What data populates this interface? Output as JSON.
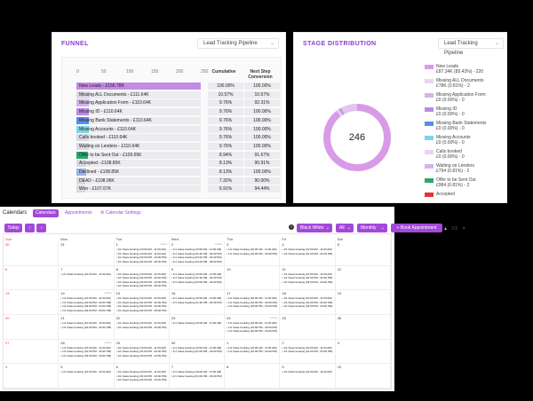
{
  "funnel": {
    "title": "FUNNEL",
    "pipeline_select": "Lead Tracking Pipeline",
    "axis_ticks": [
      "0",
      "50",
      "100",
      "150",
      "200",
      "250"
    ],
    "col_cumulative": "Cumulative",
    "col_next_step": "Next Step Conversion",
    "rows": [
      {
        "label": "New Leads - £156.78K",
        "fill": 1.0,
        "color": "#c48be6",
        "cumulative": "100.00%",
        "next": "100.00%"
      },
      {
        "label": "Missing ALL Documents - £111.64K",
        "fill": 0.1057,
        "color": "#d9d9e1",
        "cumulative": "10.57%",
        "next": "10.57%"
      },
      {
        "label": "Missing Application Form - £110.64K",
        "fill": 0.0976,
        "color": "#d3b3ec",
        "cumulative": "9.76%",
        "next": "92.31%"
      },
      {
        "label": "Missing ID - £110.64K",
        "fill": 0.0976,
        "color": "#b98be8",
        "cumulative": "9.76%",
        "next": "100.00%"
      },
      {
        "label": "Missing Bank Statements - £110.64K",
        "fill": 0.0976,
        "color": "#5a8de8",
        "cumulative": "9.76%",
        "next": "100.00%"
      },
      {
        "label": "Missing Accounts - £110.64K",
        "fill": 0.0976,
        "color": "#7cd6e8",
        "cumulative": "9.76%",
        "next": "100.00%"
      },
      {
        "label": "Calls booked - £110.64K",
        "fill": 0.0976,
        "color": "#d9d9e1",
        "cumulative": "9.76%",
        "next": "100.00%"
      },
      {
        "label": "Waiting on Lenders - £110.64K",
        "fill": 0.0976,
        "color": "#d9d9e1",
        "cumulative": "9.76%",
        "next": "100.00%"
      },
      {
        "label": "Offer to be Sent Out - £109.65K",
        "fill": 0.0894,
        "color": "#2aa86a",
        "cumulative": "8.94%",
        "next": "91.67%"
      },
      {
        "label": "Accepted - £108.85K",
        "fill": 0.0813,
        "color": "#d9d9e1",
        "cumulative": "8.13%",
        "next": "90.91%"
      },
      {
        "label": "Declined - £108.85K",
        "fill": 0.0813,
        "color": "#9bb2e8",
        "cumulative": "8.13%",
        "next": "100.00%"
      },
      {
        "label": "DEAD - £108.06K",
        "fill": 0.0732,
        "color": "#d9d9e1",
        "cumulative": "7.32%",
        "next": "90.00%"
      },
      {
        "label": "Won - £107.67K",
        "fill": 0.0691,
        "color": "#d9d9e1",
        "cumulative": "6.91%",
        "next": "94.44%"
      }
    ]
  },
  "stage": {
    "title": "STAGE DISTRIBUTION",
    "pipeline_select": "Lead Tracking Pipeline",
    "total": "246",
    "legend": [
      {
        "line1": "New Leads",
        "line2": "£87.34K (89.43%) - 220",
        "color": "#d99be8"
      },
      {
        "line1": "Missing ALL Documents",
        "line2": "£78K (0.81%) - 2",
        "color": "#e9d4f3"
      },
      {
        "line1": "Missing Application Form",
        "line2": "£0 (0.00%) - 0",
        "color": "#d3b3ec"
      },
      {
        "line1": "Missing ID",
        "line2": "£0 (0.00%) - 0",
        "color": "#b98be8"
      },
      {
        "line1": "Missing Bank Statements",
        "line2": "£0 (0.00%) - 0",
        "color": "#5a8de8"
      },
      {
        "line1": "Missing Accounts",
        "line2": "£0 (0.00%) - 0",
        "color": "#7cd6e8"
      },
      {
        "line1": "Calls booked",
        "line2": "£0 (0.00%) - 0",
        "color": "#e9d4f3"
      },
      {
        "line1": "Waiting on Lenders",
        "line2": "£794 (0.81%) - 2",
        "color": "#d3b3ec"
      },
      {
        "line1": "Offer to be Sent Out",
        "line2": "£984 (0.81%) - 2",
        "color": "#2aa86a"
      },
      {
        "line1": "Accepted",
        "line2": "",
        "color": "#e53333"
      }
    ],
    "pager": "1/2",
    "segments": [
      {
        "value": 89.43,
        "color": "#d99be8"
      },
      {
        "value": 0.81,
        "color": "#e9d4f3"
      },
      {
        "value": 0.81,
        "color": "#d3b3ec"
      },
      {
        "value": 0.81,
        "color": "#b98be8"
      },
      {
        "value": 8.14,
        "color": "#e2c4f1"
      }
    ]
  },
  "calendar": {
    "title": "Calendars",
    "tabs": [
      "Calendars",
      "Appointments",
      "Calendar Settings"
    ],
    "today_label": "Today",
    "prev_label": "‹",
    "next_label": "›",
    "filter_select": "Black White",
    "all_select": "All",
    "view_select": "Monthly",
    "new_appointment_label": "+ Book Appointment",
    "days_of_week": [
      "Sun",
      "Mon",
      "Tue",
      "Wed",
      "Thu",
      "Fri",
      "Sat"
    ],
    "more_label": "+more",
    "weeks": [
      [
        {
          "num": "30",
          "events": []
        },
        {
          "num": "31",
          "events": []
        },
        {
          "num": "1",
          "events": [
            "1/1 Class booking (10:00 AM - 11:00 AM)",
            "1/1 Class booking (10:00 AM - 11:00 AM)",
            "1/1 Class booking (03:00 PM - 04:00 PM)",
            "1/1 Class booking (04:00 PM - 05:00 PM)"
          ],
          "more": true
        },
        {
          "num": "2",
          "events": [
            "1/1 Class booking (10:00 AM - 11:00 AM)",
            "1/1 Class booking (01:30 PM - 02:30 PM)",
            "1/1 Class booking (03:00 PM - 04:00 PM)",
            "1/1 Class booking (04:00 PM - 05:00 PM)"
          ],
          "more": true
        },
        {
          "num": "3",
          "events": [
            "1/1 Class booking (10:00 AM - 11:00 AM)",
            "1/1 Class booking (01:00 PM - 02:00 PM)"
          ]
        },
        {
          "num": "4",
          "events": [
            "1/1 Class booking (10:00 AM - 11:00 AM)",
            "1/1 Class booking (01:00 PM - 02:00 PM)"
          ]
        },
        {
          "num": "5",
          "events": []
        }
      ],
      [
        {
          "num": "6",
          "events": []
        },
        {
          "num": "7",
          "events": [
            "1/1 Class booking (10:30 AM - 11:30 AM)"
          ]
        },
        {
          "num": "8",
          "events": [
            "1/1 Class booking (10:00 AM - 11:00 AM)",
            "1/1 Class booking (01:00 PM - 02:00 PM)",
            "1/1 Class booking (03:00 PM - 04:00 PM)",
            "1/1 Class booking (04:00 PM - 05:00 PM)"
          ]
        },
        {
          "num": "9",
          "events": [
            "1/1 Class booking (10:00 AM - 11:00 AM)",
            "1/1 Class booking (01:30 PM - 02:30 PM)",
            "1/1 Class booking (03:00 PM - 04:00 PM)"
          ]
        },
        {
          "num": "10",
          "events": []
        },
        {
          "num": "11",
          "events": [
            "1/1 Class booking (10:00 AM - 11:00 AM)",
            "1/1 Class booking (01:00 PM - 02:00 PM)",
            "1/1 Class booking (03:00 PM - 04:00 PM)"
          ]
        },
        {
          "num": "12",
          "events": []
        }
      ],
      [
        {
          "num": "13",
          "events": []
        },
        {
          "num": "14",
          "events": [
            "1/1 Class booking (10:00 AM - 11:00 AM)",
            "1/1 Class booking (01:00 PM - 02:00 PM)",
            "1/1 Class booking (03:00 PM - 04:00 PM)",
            "1/1 Class booking (04:00 PM - 05:00 PM)"
          ],
          "more": true
        },
        {
          "num": "15",
          "events": [
            "1/1 Class booking (10:00 AM - 11:00 AM)",
            "1/1 Class booking (01:00 PM - 02:00 PM)",
            "1/1 Class booking (03:00 PM - 04:00 PM)",
            "1/1 Class booking (04:00 PM - 05:00 PM)"
          ]
        },
        {
          "num": "16",
          "events": [
            "1/1 Class booking (10:00 AM - 11:00 AM)",
            "1/1 Class booking (01:30 PM - 02:30 PM)"
          ]
        },
        {
          "num": "17",
          "events": [
            "1/1 Class booking (10:00 AM - 11:00 AM)",
            "1/1 Class booking (01:00 PM - 02:00 PM)",
            "1/1 Class booking (03:00 PM - 04:00 PM)"
          ]
        },
        {
          "num": "18",
          "events": [
            "1/1 Class booking (10:00 AM - 11:00 AM)",
            "1/1 Class booking (01:00 PM - 02:00 PM)",
            "1/1 Class booking (03:00 PM - 04:00 PM)"
          ]
        },
        {
          "num": "19",
          "events": []
        }
      ],
      [
        {
          "num": "20",
          "events": []
        },
        {
          "num": "21",
          "events": [
            "1/1 Class booking (10:00 AM - 11:00 AM)",
            "1/1 Class booking (01:00 PM - 02:00 PM)"
          ]
        },
        {
          "num": "22",
          "events": [
            "1/1 Class booking (10:00 AM - 11:00 AM)",
            "1/1 Class booking (01:00 PM - 02:00 PM)"
          ]
        },
        {
          "num": "23",
          "events": [
            "1/1 Class booking (10:00 AM - 11:00 AM)"
          ]
        },
        {
          "num": "24",
          "events": [
            "1/1 Class booking (10:00 AM - 11:00 AM)",
            "1/1 Class booking (01:00 PM - 02:00 PM)",
            "1/1 Class booking (03:00 PM - 04:00 PM)"
          ],
          "more": true
        },
        {
          "num": "25",
          "events": []
        },
        {
          "num": "26",
          "events": []
        }
      ],
      [
        {
          "num": "27",
          "events": []
        },
        {
          "num": "28",
          "events": [
            "1/1 Class booking (10:00 AM - 11:00 AM)",
            "1/1 Class booking (01:00 PM - 02:00 PM)",
            "1/1 Class booking (03:00 PM - 04:00 PM)"
          ],
          "more": true
        },
        {
          "num": "29",
          "events": [
            "1/1 Class booking (10:00 AM - 11:00 AM)",
            "1/1 Class booking (01:00 PM - 02:00 PM)",
            "1/1 Class booking (03:00 PM - 04:00 PM)"
          ]
        },
        {
          "num": "30",
          "events": [
            "1/1 Class booking (10:00 AM - 11:00 AM)",
            "1/1 Class booking (01:00 PM - 02:00 PM)"
          ]
        },
        {
          "num": "1",
          "events": [
            "1/1 Class booking (10:00 AM - 11:00 AM)",
            "1/1 Class booking (01:00 PM - 02:00 PM)"
          ]
        },
        {
          "num": "2",
          "events": [
            "1/1 Class booking (10:00 AM - 11:00 AM)",
            "1/1 Class booking (01:00 PM - 02:00 PM)"
          ]
        },
        {
          "num": "3",
          "events": []
        }
      ],
      [
        {
          "num": "4",
          "events": []
        },
        {
          "num": "5",
          "events": [
            "1/1 Class booking (10:00 AM - 11:00 AM)"
          ]
        },
        {
          "num": "6",
          "events": [
            "1/1 Class booking (10:00 AM - 11:00 AM)",
            "1/1 Class booking (01:00 PM - 02:00 PM)",
            "1/1 Class booking (03:00 PM - 04:00 PM)"
          ]
        },
        {
          "num": "7",
          "events": [
            "1/1 Class booking (10:00 AM - 11:00 AM)",
            "1/1 Class booking (01:00 PM - 02:00 PM)"
          ]
        },
        {
          "num": "8",
          "events": []
        },
        {
          "num": "9",
          "events": [
            "1/1 Class booking (10:00 AM - 11:00 AM)"
          ]
        },
        {
          "num": "10",
          "events": []
        }
      ]
    ]
  }
}
